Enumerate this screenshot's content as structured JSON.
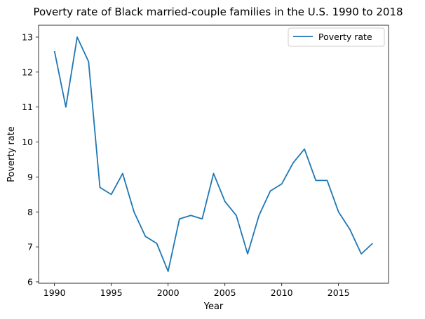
{
  "chart_data": {
    "type": "line",
    "title": "Poverty rate of Black married-couple families in the U.S. 1990 to 2018",
    "xlabel": "Year",
    "ylabel": "Poverty rate",
    "xlim": [
      1988.6,
      2019.4
    ],
    "ylim": [
      5.96,
      13.34
    ],
    "xticks": [
      1990,
      1995,
      2000,
      2005,
      2010,
      2015
    ],
    "yticks": [
      6,
      7,
      8,
      9,
      10,
      11,
      12,
      13
    ],
    "grid": false,
    "legend_position": "top-right",
    "series": [
      {
        "name": "Poverty rate",
        "color": "#1f77b4",
        "x": [
          1990,
          1991,
          1992,
          1993,
          1994,
          1995,
          1996,
          1997,
          1998,
          1999,
          2000,
          2001,
          2002,
          2003,
          2004,
          2005,
          2006,
          2007,
          2008,
          2009,
          2010,
          2011,
          2012,
          2013,
          2014,
          2015,
          2016,
          2017,
          2018
        ],
        "y": [
          12.6,
          11.0,
          13.0,
          12.3,
          8.7,
          8.5,
          9.1,
          8.0,
          7.3,
          7.1,
          6.3,
          7.8,
          7.9,
          7.8,
          9.1,
          8.3,
          7.9,
          6.8,
          7.9,
          8.6,
          8.8,
          9.4,
          9.8,
          8.9,
          8.9,
          8.0,
          7.5,
          6.8,
          7.1
        ]
      }
    ]
  }
}
